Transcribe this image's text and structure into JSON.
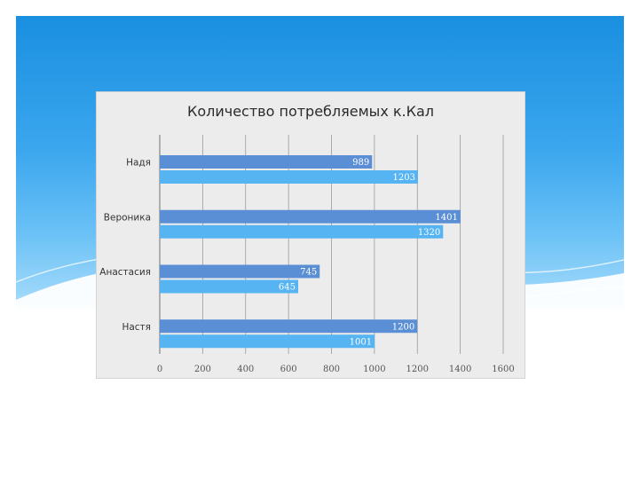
{
  "colors": {
    "series1": "#5a8fd6",
    "series2": "#57b4f2",
    "grid": "#9a9a9a"
  },
  "chart_data": {
    "type": "bar",
    "orientation": "horizontal",
    "title": "Количество потребляемых к.Кал",
    "categories": [
      "Надя",
      "Вероника",
      "Анастасия",
      "Настя"
    ],
    "series": [
      {
        "values": [
          989,
          1401,
          745,
          1200
        ]
      },
      {
        "values": [
          1203,
          1320,
          645,
          1001
        ]
      }
    ],
    "xlim": [
      0,
      1600
    ],
    "x_ticks": [
      "0",
      "200",
      "400",
      "600",
      "800",
      "1000",
      "1200",
      "1400",
      "1600"
    ],
    "grid": true,
    "legend": "none"
  }
}
